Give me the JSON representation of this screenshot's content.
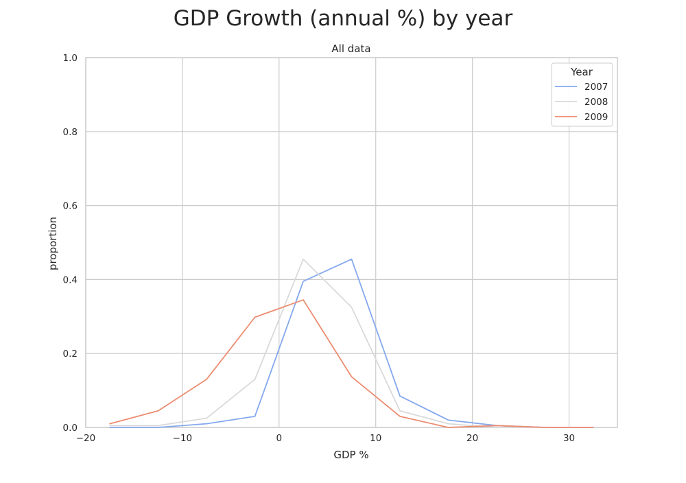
{
  "chart_data": {
    "type": "line",
    "title": "GDP Growth (annual %) by year",
    "subtitle": "All data",
    "xlabel": "GDP %",
    "ylabel": "proportion",
    "xlim": [
      -20,
      35
    ],
    "ylim": [
      0,
      1.0
    ],
    "xticks": [
      -20,
      -10,
      0,
      10,
      20,
      30
    ],
    "xtick_labels": [
      "−20",
      "−10",
      "0",
      "10",
      "20",
      "30"
    ],
    "yticks": [
      0,
      0.2,
      0.4,
      0.6,
      0.8,
      1.0
    ],
    "ytick_labels": [
      "0.0",
      "0.2",
      "0.4",
      "0.6",
      "0.8",
      "1.0"
    ],
    "grid": true,
    "legend": {
      "title": "Year",
      "placement": "top-right"
    },
    "x": [
      -17.5,
      -12.5,
      -7.5,
      -2.5,
      2.5,
      7.5,
      12.5,
      17.5,
      22.5,
      27.5,
      32.5
    ],
    "series": [
      {
        "name": "2007",
        "color": "#84a8ee",
        "values": [
          0.0,
          0.0,
          0.01,
          0.03,
          0.395,
          0.455,
          0.085,
          0.02,
          0.005,
          0.0,
          0.0
        ]
      },
      {
        "name": "2008",
        "color": "#d9d9d9",
        "values": [
          0.005,
          0.005,
          0.025,
          0.13,
          0.455,
          0.325,
          0.045,
          0.01,
          0.0,
          0.0,
          0.0
        ]
      },
      {
        "name": "2009",
        "color": "#ec8c70",
        "values": [
          0.01,
          0.045,
          0.13,
          0.298,
          0.345,
          0.137,
          0.03,
          0.0,
          0.005,
          0.0,
          0.0
        ]
      }
    ]
  }
}
